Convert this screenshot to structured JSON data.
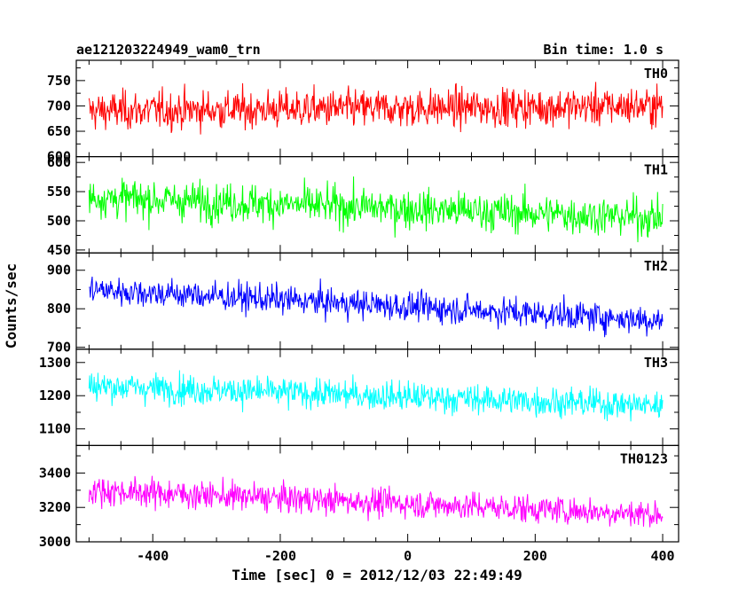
{
  "chart_data": {
    "type": "line",
    "title_left": "ae121203224949_wam0_trn",
    "title_right": "Bin time: 1.0 s",
    "xlabel": "Time [sec] 0 = 2012/12/03 22:49:49",
    "ylabel": "Counts/sec",
    "xlim": [
      -520,
      425
    ],
    "x_range": [
      -500,
      400
    ],
    "x_ticks": [
      -400,
      -200,
      0,
      200,
      400
    ],
    "panels": [
      {
        "name": "TH0",
        "color": "#ff0000",
        "ylim": [
          600,
          790
        ],
        "yticks": [
          600,
          650,
          700,
          750
        ],
        "mean_start": 690,
        "mean_end": 700,
        "spread": 32
      },
      {
        "name": "TH1",
        "color": "#00ff00",
        "ylim": [
          445,
          610
        ],
        "yticks": [
          450,
          500,
          550,
          600
        ],
        "mean_start": 540,
        "mean_end": 505,
        "spread": 28
      },
      {
        "name": "TH2",
        "color": "#0000ff",
        "ylim": [
          695,
          945
        ],
        "yticks": [
          700,
          800,
          900
        ],
        "mean_start": 850,
        "mean_end": 770,
        "spread": 32
      },
      {
        "name": "TH3",
        "color": "#00ffff",
        "ylim": [
          1050,
          1340
        ],
        "yticks": [
          1100,
          1200,
          1300
        ],
        "mean_start": 1230,
        "mean_end": 1170,
        "spread": 38
      },
      {
        "name": "TH0123",
        "color": "#ff00ff",
        "ylim": [
          3000,
          3560
        ],
        "yticks": [
          3000,
          3200,
          3400
        ],
        "mean_start": 3300,
        "mean_end": 3160,
        "spread": 70
      }
    ]
  }
}
